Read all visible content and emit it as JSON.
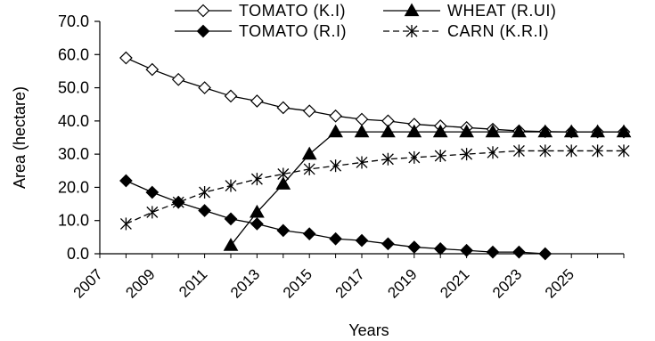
{
  "chart_data": {
    "type": "line",
    "xlabel": "Years",
    "ylabel": "Area (hectare)",
    "ylim": [
      0,
      70
    ],
    "yticks": [
      "0.0",
      "10.0",
      "20.0",
      "30.0",
      "40.0",
      "50.0",
      "60.0",
      "70.0"
    ],
    "xlim": [
      2007,
      2027
    ],
    "xticks": [
      "2007",
      "2009",
      "2011",
      "2013",
      "2015",
      "2017",
      "2019",
      "2021",
      "2023",
      "2025"
    ],
    "grid": false,
    "legend_position": "top",
    "series": [
      {
        "name": "TOMATO (K.I)",
        "marker": "open-diamond",
        "line": "solid",
        "x": [
          2008,
          2009,
          2010,
          2011,
          2012,
          2013,
          2014,
          2015,
          2016,
          2017,
          2018,
          2019,
          2020,
          2021,
          2022,
          2023,
          2024,
          2025,
          2026,
          2027
        ],
        "y": [
          59.0,
          55.5,
          52.5,
          50.0,
          47.5,
          46.0,
          44.0,
          43.0,
          41.5,
          40.5,
          40.0,
          39.0,
          38.5,
          38.0,
          37.5,
          37.0,
          36.8,
          36.7,
          36.7,
          36.7
        ]
      },
      {
        "name": "WHEAT (R.UI)",
        "marker": "filled-triangle",
        "line": "solid",
        "x": [
          2012,
          2013,
          2014,
          2015,
          2016,
          2017,
          2018,
          2019,
          2020,
          2021,
          2022,
          2023,
          2024,
          2025,
          2026,
          2027
        ],
        "y": [
          2.5,
          12.5,
          21.0,
          30.0,
          36.7,
          36.7,
          36.7,
          36.7,
          36.7,
          36.7,
          36.7,
          36.7,
          36.7,
          36.7,
          36.7,
          36.7
        ]
      },
      {
        "name": "TOMATO (R.I)",
        "marker": "filled-diamond",
        "line": "solid",
        "x": [
          2008,
          2009,
          2010,
          2011,
          2012,
          2013,
          2014,
          2015,
          2016,
          2017,
          2018,
          2019,
          2020,
          2021,
          2022,
          2023,
          2024
        ],
        "y": [
          22.0,
          18.5,
          15.5,
          13.0,
          10.5,
          9.0,
          7.0,
          6.0,
          4.5,
          4.0,
          3.0,
          2.0,
          1.5,
          1.0,
          0.5,
          0.5,
          0.0
        ]
      },
      {
        "name": "CARN (K.R.I)",
        "marker": "asterisk",
        "line": "dashed",
        "x": [
          2008,
          2009,
          2010,
          2011,
          2012,
          2013,
          2014,
          2015,
          2016,
          2017,
          2018,
          2019,
          2020,
          2021,
          2022,
          2023,
          2024,
          2025,
          2026,
          2027
        ],
        "y": [
          9.0,
          12.5,
          15.5,
          18.5,
          20.5,
          22.5,
          24.0,
          25.5,
          26.5,
          27.5,
          28.5,
          29.0,
          29.5,
          30.0,
          30.5,
          31.0,
          31.0,
          31.0,
          31.0,
          31.0
        ]
      }
    ]
  }
}
